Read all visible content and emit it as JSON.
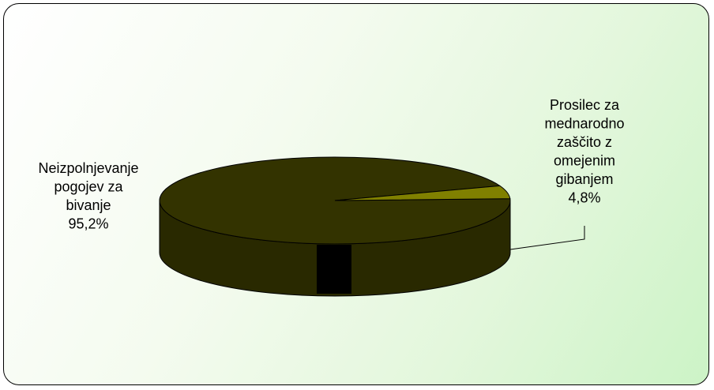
{
  "chart_data": {
    "type": "pie",
    "style": "3d",
    "slices": [
      {
        "label": "Neizpolnjevanje pogojev za bivanje",
        "value": 95.2,
        "display": "95,2%",
        "color": "#333300",
        "label_lines": [
          "Neizpolnjevanje",
          "pogojev za",
          "bivanje",
          "95,2%"
        ]
      },
      {
        "label": "Prosilec za mednarodno zaščito z omejenim gibanjem",
        "value": 4.8,
        "display": "4,8%",
        "color": "#808000",
        "label_lines": [
          "Prosilec za",
          "mednarodno",
          "zaščito z",
          "omejenim",
          "gibanjem",
          "4,8%"
        ]
      }
    ],
    "colors": {
      "frame_border": "#000000",
      "background_end": "#ccf3c6"
    }
  }
}
